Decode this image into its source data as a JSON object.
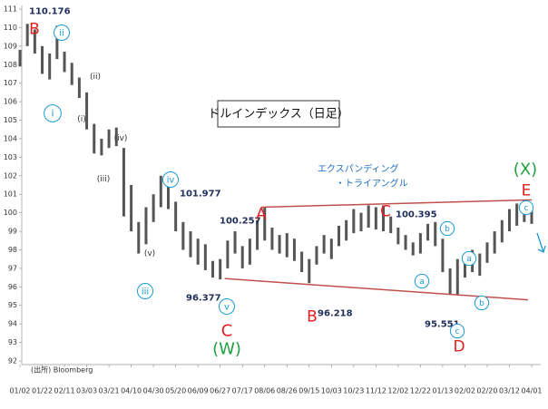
{
  "chart_data": {
    "type": "range-bar",
    "title": "ドルインデックス（日足）",
    "source": "(出所) Bloomberg",
    "categories": [
      "01/02",
      null,
      null,
      "01/22",
      null,
      null,
      "02/11",
      null,
      null,
      "03/03",
      null,
      null,
      "03/21",
      null,
      null,
      "04/10",
      null,
      null,
      "04/30",
      null,
      null,
      "05/20",
      null,
      null,
      "06/09",
      null,
      null,
      "06/27",
      null,
      null,
      "07/17",
      null,
      null,
      "08/06",
      null,
      null,
      "08/26",
      null,
      null,
      "09/15",
      null,
      null,
      "10/03",
      null,
      null,
      "10/23",
      null,
      null,
      "11/12",
      null,
      null,
      "12/02",
      null,
      null,
      "12/22",
      null,
      null,
      "01/13",
      null,
      null,
      "02/02",
      null,
      null,
      "02/20",
      null,
      null,
      "03/12",
      null,
      null,
      "04/01"
    ],
    "series": [
      {
        "name": "High",
        "color": "#555555",
        "values": [
          108.8,
          110.2,
          109.9,
          109.0,
          108.6,
          110.1,
          108.7,
          108.1,
          107.3,
          106.5,
          104.8,
          104.0,
          104.5,
          104.6,
          103.5,
          101.5,
          99.5,
          100.3,
          101.0,
          102.0,
          101.9,
          100.6,
          99.5,
          99.0,
          98.6,
          98.3,
          97.4,
          97.5,
          98.5,
          99.0,
          98.2,
          98.6,
          99.6,
          100.3,
          99.2,
          98.8,
          98.9,
          98.6,
          97.9,
          97.5,
          98.2,
          98.8,
          98.6,
          99.3,
          99.6,
          100.2,
          100.0,
          100.4,
          100.3,
          100.4,
          99.8,
          99.2,
          98.8,
          98.4,
          98.9,
          99.4,
          99.5,
          98.6,
          97.0,
          97.5,
          97.6,
          98.0,
          97.8,
          98.4,
          99.0,
          99.6,
          100.2,
          100.5,
          100.7,
          100.4
        ]
      },
      {
        "name": "Low",
        "color": "#555555",
        "values": [
          107.9,
          109.0,
          108.6,
          107.5,
          107.2,
          108.3,
          107.6,
          106.9,
          106.2,
          104.5,
          103.2,
          103.1,
          103.5,
          103.6,
          99.8,
          99.0,
          97.8,
          98.3,
          99.5,
          100.3,
          100.2,
          99.0,
          98.0,
          97.6,
          97.2,
          96.9,
          96.5,
          96.4,
          97.0,
          97.8,
          97.0,
          97.2,
          98.0,
          98.5,
          98.0,
          97.8,
          97.6,
          97.4,
          96.8,
          96.2,
          97.2,
          97.8,
          97.5,
          98.2,
          98.5,
          98.9,
          99.0,
          99.2,
          99.1,
          99.0,
          98.9,
          98.3,
          98.0,
          97.7,
          97.8,
          98.5,
          98.2,
          96.8,
          95.6,
          95.6,
          96.5,
          96.8,
          96.6,
          97.3,
          97.8,
          98.4,
          99.0,
          99.3,
          99.5,
          99.4
        ]
      }
    ],
    "ylim": [
      92,
      111
    ],
    "yticks": [
      92,
      93,
      94,
      95,
      96,
      97,
      98,
      99,
      100,
      101,
      102,
      103,
      104,
      105,
      106,
      107,
      108,
      109,
      110,
      111
    ],
    "trendlines": [
      {
        "x": [
          32.5,
          69
        ],
        "y": [
          100.3,
          100.7
        ],
        "color": "#c0504d"
      },
      {
        "x": [
          27.6,
          68.5
        ],
        "y": [
          96.45,
          95.3
        ],
        "color": "#c0504d"
      }
    ],
    "annotations": [
      {
        "text": "110.176",
        "color": "#1f2d5a"
      },
      {
        "text": "B",
        "color": "#e02020"
      },
      {
        "text": "ii",
        "color": "#1a9bd7",
        "circled": true
      },
      {
        "text": "i",
        "color": "#1a9bd7",
        "circled": true
      },
      {
        "text": "(ii)",
        "color": "#333333"
      },
      {
        "text": "(i)",
        "color": "#333333"
      },
      {
        "text": "(iv)",
        "color": "#333333"
      },
      {
        "text": "(iii)",
        "color": "#333333"
      },
      {
        "text": "iv",
        "color": "#1a9bd7",
        "circled": true
      },
      {
        "text": "101.977",
        "color": "#1f2d5a"
      },
      {
        "text": "(v)",
        "color": "#333333"
      },
      {
        "text": "iii",
        "color": "#1a9bd7",
        "circled": true
      },
      {
        "text": "96.377",
        "color": "#1f2d5a"
      },
      {
        "text": "v",
        "color": "#1a9bd7",
        "circled": true
      },
      {
        "text": "C",
        "color": "#e02020"
      },
      {
        "text": "(W)",
        "color": "#20a040"
      },
      {
        "text": "100.257",
        "color": "#1f2d5a"
      },
      {
        "text": "A",
        "color": "#e02020"
      },
      {
        "text": "96.218",
        "color": "#1f2d5a"
      },
      {
        "text": "B",
        "color": "#e02020"
      },
      {
        "text": "C",
        "color": "#e02020"
      },
      {
        "text": "100.395",
        "color": "#1f2d5a"
      },
      {
        "text": "b",
        "color": "#1a9bd7",
        "circled": true
      },
      {
        "text": "a",
        "color": "#1a9bd7",
        "circled": true
      },
      {
        "text": "95.551",
        "color": "#1f2d5a"
      },
      {
        "text": "c",
        "color": "#1a9bd7",
        "circled": true
      },
      {
        "text": "D",
        "color": "#e02020"
      },
      {
        "text": "a",
        "color": "#1a9bd7",
        "circled": true
      },
      {
        "text": "b",
        "color": "#1a9bd7",
        "circled": true
      },
      {
        "text": "c",
        "color": "#1a9bd7",
        "circled": true
      },
      {
        "text": "E",
        "color": "#e02020"
      },
      {
        "text": "(X)",
        "color": "#20a040"
      },
      {
        "text": "エクスパンディング",
        "color": "#1a6fc0"
      },
      {
        "text": "・トライアングル",
        "color": "#1a6fc0"
      }
    ]
  }
}
